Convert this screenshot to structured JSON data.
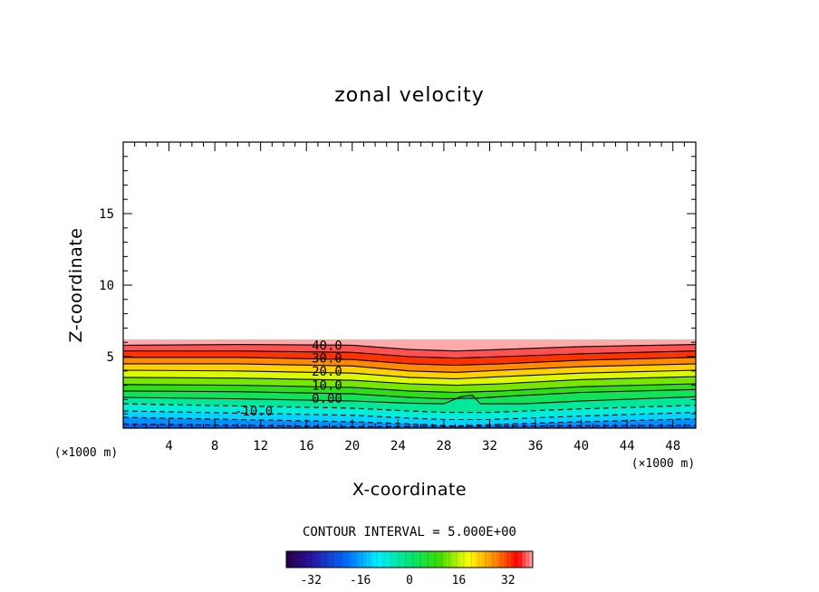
{
  "chart_data": {
    "type": "contour",
    "title": "zonal velocity",
    "xlabel": "X-coordinate",
    "ylabel": "Z-coordinate",
    "x_unit_label": "(×1000 m)",
    "xlim": [
      0,
      50
    ],
    "ylim": [
      0,
      20
    ],
    "x_ticks": [
      4,
      8,
      12,
      16,
      20,
      24,
      28,
      32,
      36,
      40,
      44,
      48
    ],
    "x_tick_labels": [
      "4",
      "8",
      "12",
      "16",
      "20",
      "24",
      "28",
      "32",
      "36",
      "40",
      "44",
      "48"
    ],
    "y_ticks": [
      5,
      10,
      15
    ],
    "y_tick_labels": [
      "5",
      "10",
      "15"
    ],
    "contour_interval_text": "CONTOUR INTERVAL = 5.000E+00",
    "contour_interval": 5,
    "field_top_height": 6.2,
    "contour_labels": [
      {
        "text": "40.0",
        "x": 17.8,
        "z": 5.8
      },
      {
        "text": "30.0",
        "x": 17.8,
        "z": 4.9
      },
      {
        "text": "20.0",
        "x": 17.8,
        "z": 4.0
      },
      {
        "text": "10.0",
        "x": 17.8,
        "z": 3.0
      },
      {
        "text": "0.00",
        "x": 17.8,
        "z": 2.1
      },
      {
        "text": "-10.0",
        "x": 11.4,
        "z": 1.2
      }
    ],
    "contour_levels": [
      {
        "value": 40,
        "style": "solid",
        "points": [
          [
            0,
            5.8
          ],
          [
            10,
            5.85
          ],
          [
            20,
            5.8
          ],
          [
            25,
            5.5
          ],
          [
            29,
            5.4
          ],
          [
            33,
            5.5
          ],
          [
            40,
            5.7
          ],
          [
            50,
            5.85
          ]
        ]
      },
      {
        "value": 35,
        "style": "solid",
        "points": [
          [
            0,
            5.4
          ],
          [
            10,
            5.4
          ],
          [
            20,
            5.3
          ],
          [
            25,
            5.0
          ],
          [
            29,
            4.9
          ],
          [
            33,
            5.0
          ],
          [
            40,
            5.2
          ],
          [
            50,
            5.4
          ]
        ]
      },
      {
        "value": 30,
        "style": "solid",
        "points": [
          [
            0,
            4.95
          ],
          [
            10,
            4.95
          ],
          [
            20,
            4.8
          ],
          [
            25,
            4.5
          ],
          [
            29,
            4.4
          ],
          [
            33,
            4.5
          ],
          [
            40,
            4.75
          ],
          [
            50,
            4.95
          ]
        ]
      },
      {
        "value": 25,
        "style": "solid",
        "points": [
          [
            0,
            4.5
          ],
          [
            10,
            4.5
          ],
          [
            20,
            4.35
          ],
          [
            25,
            4.0
          ],
          [
            29,
            3.9
          ],
          [
            33,
            4.05
          ],
          [
            40,
            4.3
          ],
          [
            50,
            4.5
          ]
        ]
      },
      {
        "value": 20,
        "style": "solid",
        "points": [
          [
            0,
            4.05
          ],
          [
            10,
            4.0
          ],
          [
            20,
            3.85
          ],
          [
            25,
            3.55
          ],
          [
            29,
            3.45
          ],
          [
            33,
            3.6
          ],
          [
            40,
            3.85
          ],
          [
            50,
            4.05
          ]
        ]
      },
      {
        "value": 15,
        "style": "solid",
        "points": [
          [
            0,
            3.55
          ],
          [
            10,
            3.5
          ],
          [
            20,
            3.35
          ],
          [
            25,
            3.1
          ],
          [
            29,
            3.0
          ],
          [
            33,
            3.1
          ],
          [
            40,
            3.4
          ],
          [
            50,
            3.6
          ]
        ]
      },
      {
        "value": 10,
        "style": "solid",
        "points": [
          [
            0,
            3.05
          ],
          [
            10,
            3.0
          ],
          [
            20,
            2.85
          ],
          [
            25,
            2.6
          ],
          [
            29,
            2.5
          ],
          [
            33,
            2.6
          ],
          [
            40,
            2.9
          ],
          [
            50,
            3.1
          ]
        ]
      },
      {
        "value": 5,
        "style": "solid",
        "points": [
          [
            0,
            2.6
          ],
          [
            10,
            2.55
          ],
          [
            20,
            2.4
          ],
          [
            25,
            2.15
          ],
          [
            28,
            2.05
          ],
          [
            31,
            2.1
          ],
          [
            34,
            2.25
          ],
          [
            40,
            2.5
          ],
          [
            50,
            2.7
          ]
        ]
      },
      {
        "value": 0,
        "style": "solid",
        "points": [
          [
            0,
            2.15
          ],
          [
            10,
            2.05
          ],
          [
            20,
            1.9
          ],
          [
            25,
            1.75
          ],
          [
            28,
            1.7
          ],
          [
            29.5,
            2.2
          ],
          [
            30.5,
            2.3
          ],
          [
            31.2,
            1.7
          ],
          [
            35,
            1.7
          ],
          [
            40,
            1.9
          ],
          [
            50,
            2.2
          ]
        ]
      },
      {
        "value": -5,
        "style": "dashed",
        "points": [
          [
            0,
            1.7
          ],
          [
            10,
            1.55
          ],
          [
            20,
            1.4
          ],
          [
            25,
            1.2
          ],
          [
            28,
            1.1
          ],
          [
            32,
            1.1
          ],
          [
            40,
            1.35
          ],
          [
            50,
            1.6
          ]
        ]
      },
      {
        "value": -10,
        "style": "dashed",
        "points": [
          [
            0,
            1.2
          ],
          [
            10,
            1.05
          ],
          [
            20,
            0.9
          ],
          [
            25,
            0.7
          ],
          [
            28,
            0.6
          ],
          [
            32,
            0.6
          ],
          [
            40,
            0.85
          ],
          [
            50,
            1.1
          ]
        ]
      },
      {
        "value": -15,
        "style": "dashed",
        "points": [
          [
            0,
            0.75
          ],
          [
            10,
            0.6
          ],
          [
            20,
            0.45
          ],
          [
            25,
            0.3
          ],
          [
            29,
            0.15
          ],
          [
            32,
            0.25
          ],
          [
            40,
            0.45
          ],
          [
            50,
            0.65
          ]
        ]
      },
      {
        "value": -20,
        "style": "dashed",
        "points": [
          [
            0,
            0.3
          ],
          [
            10,
            0.2
          ],
          [
            20,
            0.1
          ],
          [
            50,
            0.2
          ]
        ]
      }
    ],
    "colorbar": {
      "vmin": -40,
      "vmax": 40,
      "ticks": [
        -32,
        -16,
        0,
        16,
        32
      ],
      "tick_labels": [
        "-32",
        "-16",
        "0",
        "16",
        "32"
      ]
    }
  }
}
